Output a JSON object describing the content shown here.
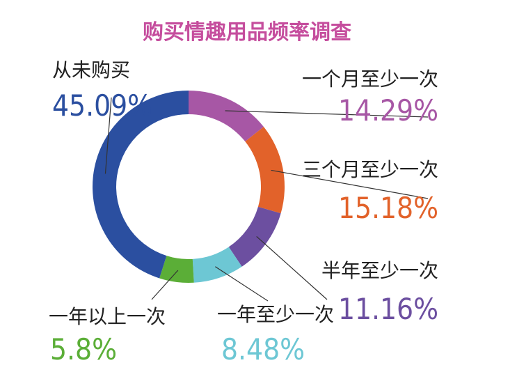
{
  "chart_data": {
    "type": "pie",
    "title": "购买情趣用品频率调查",
    "title_color": "#c54d9d",
    "categories": [
      "一个月至少一次",
      "三个月至少一次",
      "半年至少一次",
      "一年至少一次",
      "一年以上一次",
      "从未购买"
    ],
    "values": [
      14.29,
      15.18,
      11.16,
      8.48,
      5.8,
      45.09
    ],
    "value_labels": [
      "14.29%",
      "15.18%",
      "11.16%",
      "8.48%",
      "5.8%",
      "45.09%"
    ],
    "colors": [
      "#a757a5",
      "#e2622a",
      "#6c4fa0",
      "#6dc7d4",
      "#5bae37",
      "#2b4fa0"
    ],
    "donut": true,
    "legend": "none"
  }
}
